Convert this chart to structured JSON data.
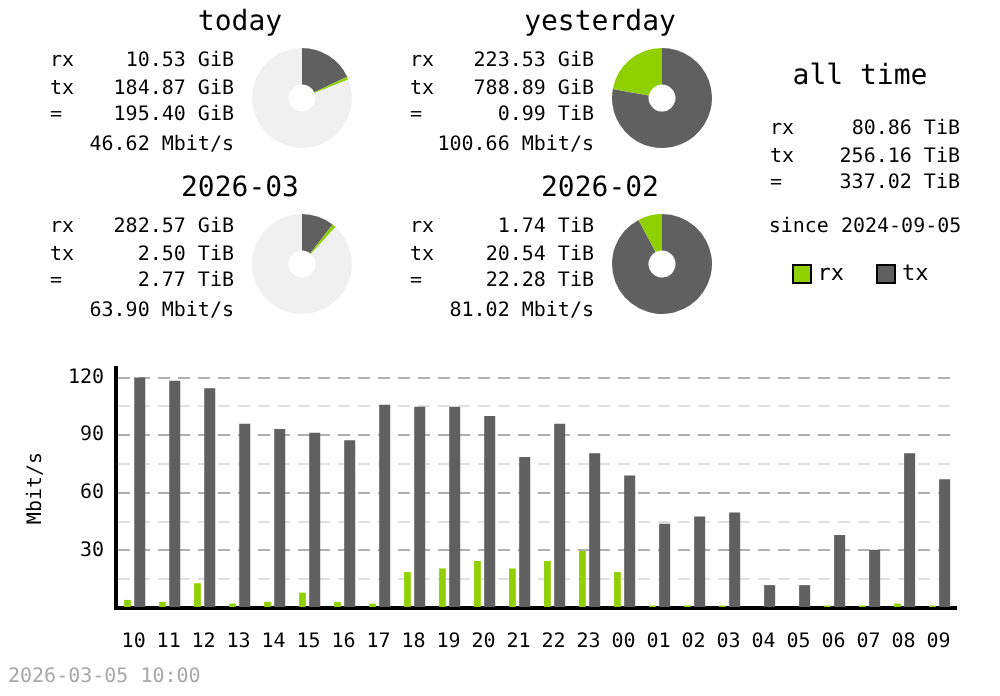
{
  "chart_data": [
    {
      "type": "donut",
      "title": "today",
      "annotations": [
        "rx 10.53 GiB",
        "tx 184.87 GiB",
        "= 195.40 GiB",
        "46.62 Mbit/s"
      ],
      "categories": [
        null,
        null,
        null
      ],
      "values": [
        18,
        1,
        81
      ],
      "colors": [
        "#606060",
        "#90d000",
        "#f0f0f0"
      ]
    },
    {
      "type": "donut",
      "title": "yesterday",
      "annotations": [
        "rx 223.53 GiB",
        "tx 788.89 GiB",
        "= 0.99 TiB",
        "100.66 Mbit/s"
      ],
      "categories": [
        null,
        null
      ],
      "values": [
        77.9,
        22.1
      ],
      "colors": [
        "#606060",
        "#90d000"
      ]
    },
    {
      "type": "donut",
      "title": "2026-03",
      "annotations": [
        "rx 282.57 GiB",
        "tx 2.50 TiB",
        "= 2.77 TiB",
        "63.90 Mbit/s"
      ],
      "categories": [
        null,
        null,
        null
      ],
      "values": [
        10.5,
        1.2,
        88.3
      ],
      "colors": [
        "#606060",
        "#90d000",
        "#f0f0f0"
      ]
    },
    {
      "type": "donut",
      "title": "2026-02",
      "annotations": [
        "rx 1.74 TiB",
        "tx 20.54 TiB",
        "= 22.28 TiB",
        "81.02 Mbit/s"
      ],
      "categories": [
        null,
        null
      ],
      "values": [
        92.2,
        7.8
      ],
      "colors": [
        "#606060",
        "#90d000"
      ]
    },
    {
      "type": "other",
      "title": "all time",
      "annotations": [
        "rx 80.86 TiB",
        "tx 256.16 TiB",
        "= 337.02 TiB",
        "since 2024-09-05"
      ]
    },
    {
      "type": "bar",
      "ylabel": "Mbit/s",
      "categories": [
        "10",
        "11",
        "12",
        "13",
        "14",
        "15",
        "16",
        "17",
        "18",
        "19",
        "20",
        "21",
        "22",
        "23",
        "00",
        "01",
        "02",
        "03",
        "04",
        "05",
        "06",
        "07",
        "08",
        "09"
      ],
      "series": [
        {
          "name": "rx",
          "color": "#90d000",
          "values": [
            4.2,
            3.2,
            12.9,
            2.3,
            3.2,
            8,
            3.2,
            2.3,
            18.7,
            20.6,
            24.5,
            20.6,
            24.5,
            29.7,
            18.7,
            1.3,
            1.3,
            1.3,
            0,
            0,
            1.3,
            1.3,
            2.3,
            1.3
          ]
        },
        {
          "name": "tx",
          "color": "#606060",
          "values": [
            120,
            118.4,
            114.5,
            96,
            93.2,
            91.3,
            87.4,
            105.8,
            104.8,
            104.8,
            100,
            78.7,
            96,
            80.6,
            69,
            43.9,
            47.7,
            49.7,
            11.9,
            11.9,
            38,
            30.3,
            80.6,
            67
          ]
        }
      ],
      "ylim": [
        0,
        125
      ],
      "yticks": [
        {
          "value": 0,
          "label": null
        },
        {
          "value": 15,
          "label": null
        },
        30,
        {
          "value": 45,
          "label": null
        },
        60,
        {
          "value": 75,
          "label": null
        },
        90,
        {
          "value": 105,
          "label": null
        },
        120
      ],
      "grid": "y",
      "legend": "top right",
      "annotations": [
        "2026-03-05 10:00"
      ]
    }
  ]
}
